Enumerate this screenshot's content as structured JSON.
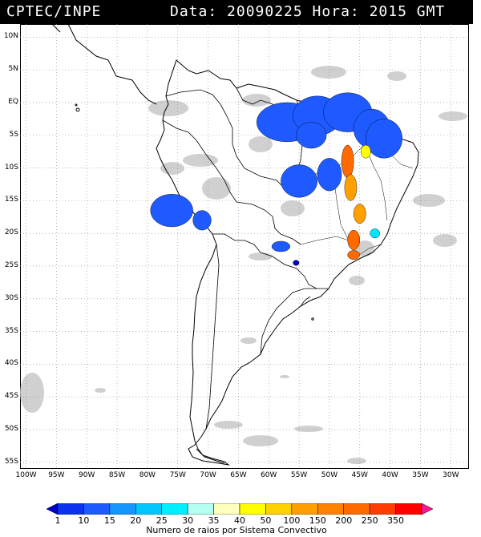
{
  "header": {
    "source": "CPTEC/INPE",
    "datetime": "Data: 20090225 Hora: 2015 GMT"
  },
  "map": {
    "lat_labels": [
      "10N",
      "5N",
      "EQ",
      "5S",
      "10S",
      "15S",
      "20S",
      "25S",
      "30S",
      "35S",
      "40S",
      "45S",
      "50S",
      "55S"
    ],
    "lon_labels": [
      "100W",
      "95W",
      "90W",
      "85W",
      "80W",
      "75W",
      "70W",
      "65W",
      "60W",
      "55W",
      "50W",
      "45W",
      "40W",
      "35W",
      "30W"
    ],
    "lat_range": [
      -56,
      12
    ],
    "lon_range": [
      -101,
      -27
    ],
    "cloud_color": "#c8c8c8",
    "cells": [
      {
        "lon": -57,
        "lat": -3,
        "rx": 5,
        "ry": 3,
        "c": "#1e5aff"
      },
      {
        "lon": -52,
        "lat": -2,
        "rx": 4,
        "ry": 3,
        "c": "#1e5aff"
      },
      {
        "lon": -47,
        "lat": -1.5,
        "rx": 4,
        "ry": 3,
        "c": "#1e5aff"
      },
      {
        "lon": -43,
        "lat": -4,
        "rx": 3,
        "ry": 3,
        "c": "#1e5aff"
      },
      {
        "lon": -41,
        "lat": -5.5,
        "rx": 3,
        "ry": 3,
        "c": "#1e5aff"
      },
      {
        "lon": -53,
        "lat": -5,
        "rx": 2.5,
        "ry": 2,
        "c": "#1e5aff"
      },
      {
        "lon": -55,
        "lat": -12,
        "rx": 3,
        "ry": 2.5,
        "c": "#1e5aff"
      },
      {
        "lon": -50,
        "lat": -11,
        "rx": 2,
        "ry": 2.5,
        "c": "#1e5aff"
      },
      {
        "lon": -76,
        "lat": -16.5,
        "rx": 3.5,
        "ry": 2.5,
        "c": "#1e5aff"
      },
      {
        "lon": -71,
        "lat": -18,
        "rx": 1.5,
        "ry": 1.5,
        "c": "#1e5aff"
      },
      {
        "lon": -58,
        "lat": -22,
        "rx": 1.5,
        "ry": 0.8,
        "c": "#1e5aff"
      },
      {
        "lon": -47,
        "lat": -9,
        "rx": 1,
        "ry": 2.5,
        "c": "#ff6a00"
      },
      {
        "lon": -46.5,
        "lat": -13,
        "rx": 1,
        "ry": 2,
        "c": "#ffa000"
      },
      {
        "lon": -45,
        "lat": -17,
        "rx": 1,
        "ry": 1.5,
        "c": "#ffa000"
      },
      {
        "lon": -46,
        "lat": -21,
        "rx": 1,
        "ry": 1.5,
        "c": "#ff6a00"
      },
      {
        "lon": -46,
        "lat": -23.3,
        "rx": 1,
        "ry": 0.7,
        "c": "#ff6a00"
      },
      {
        "lon": -44,
        "lat": -7.5,
        "rx": 0.8,
        "ry": 1,
        "c": "#ffff00"
      },
      {
        "lon": -42.5,
        "lat": -20,
        "rx": 0.8,
        "ry": 0.7,
        "c": "#00e6ff"
      },
      {
        "lon": -55.5,
        "lat": -24.5,
        "rx": 0.5,
        "ry": 0.4,
        "c": "#0000c8"
      }
    ]
  },
  "colorbar": {
    "colors": [
      "#0000c8",
      "#0a32f0",
      "#1e5aff",
      "#1496ff",
      "#00c8ff",
      "#00f0ff",
      "#b4fff0",
      "#ffffbe",
      "#ffff00",
      "#ffd200",
      "#ffa000",
      "#ff8200",
      "#ff6a00",
      "#ff3c00",
      "#ff0000",
      "#ff1493"
    ],
    "labels": [
      "1",
      "10",
      "15",
      "20",
      "25",
      "30",
      "35",
      "40",
      "50",
      "100",
      "150",
      "200",
      "250",
      "350"
    ]
  },
  "caption": "Numero de raios por Sistema Convectivo"
}
